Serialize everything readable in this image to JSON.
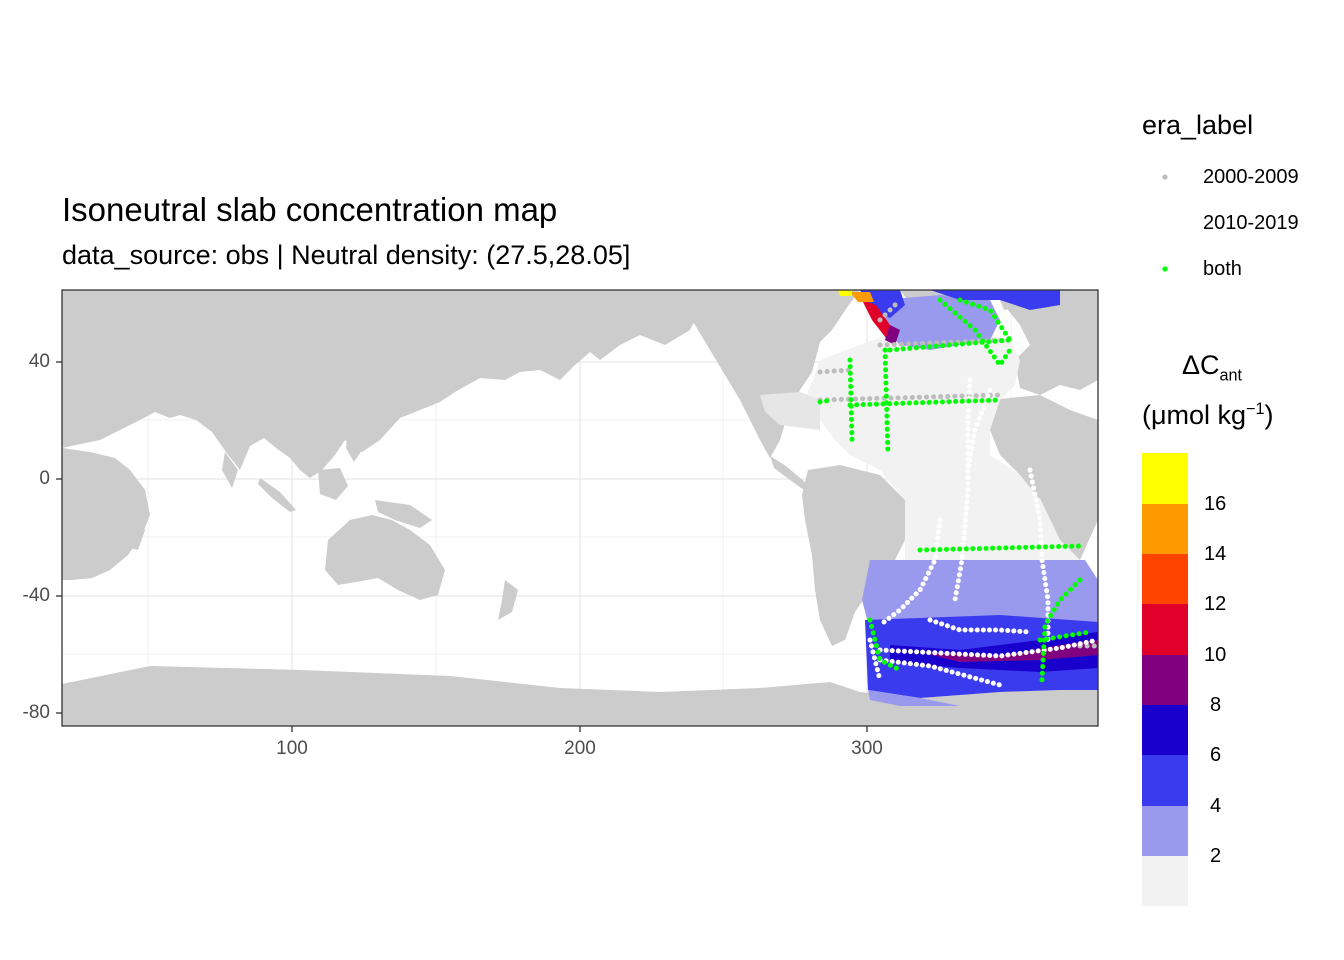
{
  "title": "Isoneutral slab concentration map",
  "subtitle": "data_source: obs | Neutral density: (27.5,28.05]",
  "axes": {
    "x_ticks": [
      "100",
      "200",
      "300"
    ],
    "y_ticks": [
      "40",
      "0",
      "-40",
      "-80"
    ]
  },
  "legend_era": {
    "title": "era_label",
    "items": [
      {
        "label": "2000-2009",
        "color": "#bdbdbd"
      },
      {
        "label": "2010-2019",
        "color": "#ffffff"
      },
      {
        "label": "both",
        "color": "#00ff00"
      }
    ]
  },
  "colorbar": {
    "title_main": "ΔC",
    "title_sub": "ant",
    "unit_prefix": "(μmol kg",
    "unit_sup": "−1",
    "unit_suffix": ")",
    "labels": [
      "16",
      "14",
      "12",
      "10",
      "8",
      "6",
      "4",
      "2"
    ],
    "colors": [
      "#f2f2f2",
      "#9999ee",
      "#3a3aee",
      "#1a00cc",
      "#800080",
      "#e0002a",
      "#ff4400",
      "#ff9900",
      "#ffff00"
    ]
  },
  "map_colors": {
    "land": "#cccccc",
    "ocean": "#ffffff",
    "grid": "#ebebeb"
  }
}
